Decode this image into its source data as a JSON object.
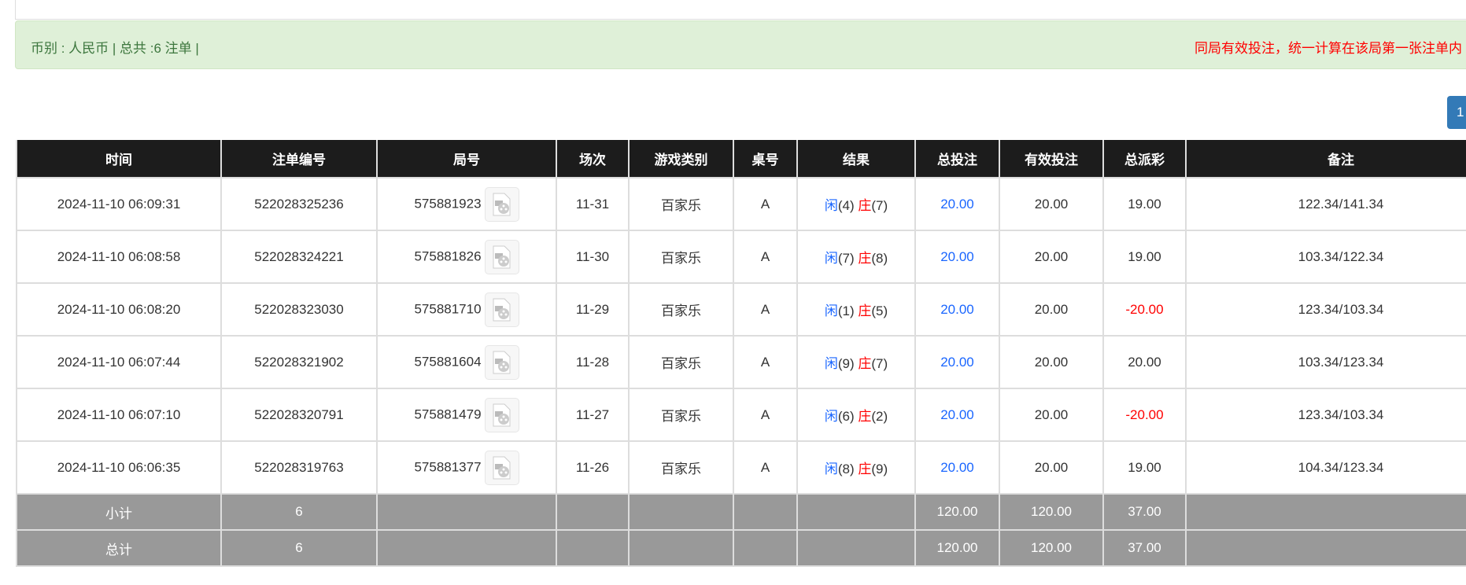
{
  "summary": {
    "text": "币别 : 人民币 | 总共 :6 注单 |",
    "notice": "同局有效投注，统一计算在该局第一张注单内"
  },
  "pagination": {
    "current": "1"
  },
  "colors": {
    "header_bg": "#1c1c1c",
    "alert_bg": "#dff0d8",
    "blue": "#1a66ff",
    "red": "#ff0000",
    "sum_bg": "#999999"
  },
  "table": {
    "headers": [
      "时间",
      "注单编号",
      "局号",
      "场次",
      "游戏类别",
      "桌号",
      "结果",
      "总投注",
      "有效投注",
      "总派彩",
      "备注"
    ],
    "rows": [
      {
        "time": "2024-11-10 06:09:31",
        "bet_id": "522028325236",
        "round": "575881923",
        "shoe": "11-31",
        "game": "百家乐",
        "table": "A",
        "player_label": "闲",
        "player": "(4)",
        "banker_label": "庄",
        "banker": "(7)",
        "total_bet": "20.00",
        "valid_bet": "20.00",
        "payout": "19.00",
        "payout_negative": false,
        "note": "122.34/141.34"
      },
      {
        "time": "2024-11-10 06:08:58",
        "bet_id": "522028324221",
        "round": "575881826",
        "shoe": "11-30",
        "game": "百家乐",
        "table": "A",
        "player_label": "闲",
        "player": "(7)",
        "banker_label": "庄",
        "banker": "(8)",
        "total_bet": "20.00",
        "valid_bet": "20.00",
        "payout": "19.00",
        "payout_negative": false,
        "note": "103.34/122.34"
      },
      {
        "time": "2024-11-10 06:08:20",
        "bet_id": "522028323030",
        "round": "575881710",
        "shoe": "11-29",
        "game": "百家乐",
        "table": "A",
        "player_label": "闲",
        "player": "(1)",
        "banker_label": "庄",
        "banker": "(5)",
        "total_bet": "20.00",
        "valid_bet": "20.00",
        "payout": "-20.00",
        "payout_negative": true,
        "note": "123.34/103.34"
      },
      {
        "time": "2024-11-10 06:07:44",
        "bet_id": "522028321902",
        "round": "575881604",
        "shoe": "11-28",
        "game": "百家乐",
        "table": "A",
        "player_label": "闲",
        "player": "(9)",
        "banker_label": "庄",
        "banker": "(7)",
        "total_bet": "20.00",
        "valid_bet": "20.00",
        "payout": "20.00",
        "payout_negative": false,
        "note": "103.34/123.34"
      },
      {
        "time": "2024-11-10 06:07:10",
        "bet_id": "522028320791",
        "round": "575881479",
        "shoe": "11-27",
        "game": "百家乐",
        "table": "A",
        "player_label": "闲",
        "player": "(6)",
        "banker_label": "庄",
        "banker": "(2)",
        "total_bet": "20.00",
        "valid_bet": "20.00",
        "payout": "-20.00",
        "payout_negative": true,
        "note": "123.34/103.34"
      },
      {
        "time": "2024-11-10 06:06:35",
        "bet_id": "522028319763",
        "round": "575881377",
        "shoe": "11-26",
        "game": "百家乐",
        "table": "A",
        "player_label": "闲",
        "player": "(8)",
        "banker_label": "庄",
        "banker": "(9)",
        "total_bet": "20.00",
        "valid_bet": "20.00",
        "payout": "19.00",
        "payout_negative": false,
        "note": "104.34/123.34"
      }
    ],
    "subtotal": {
      "label": "小计",
      "count": "6",
      "total_bet": "120.00",
      "valid_bet": "120.00",
      "payout": "37.00"
    },
    "total": {
      "label": "总计",
      "count": "6",
      "total_bet": "120.00",
      "valid_bet": "120.00",
      "payout": "37.00"
    }
  }
}
